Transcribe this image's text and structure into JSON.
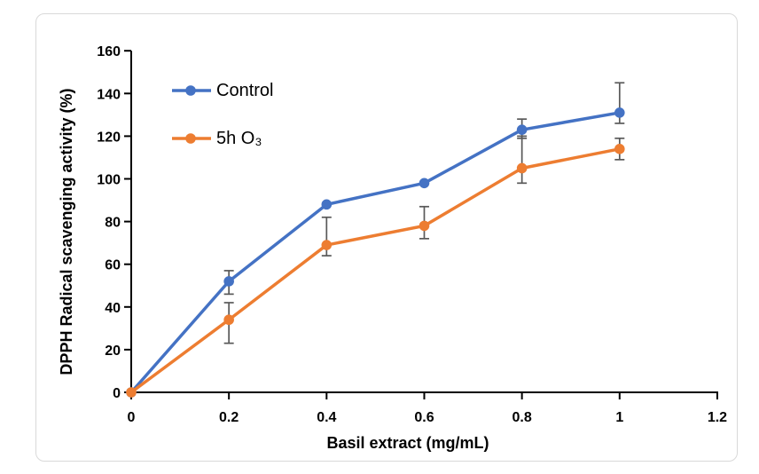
{
  "figure": {
    "background_color": "#ffffff",
    "frame_border_color": "#d9d9d9"
  },
  "chart_data": {
    "type": "line",
    "title": "",
    "xlabel": "Basil extract (mg/mL)",
    "ylabel": "DPPH Radical scavenging activity (%)",
    "x": [
      0,
      0.2,
      0.4,
      0.6,
      0.8,
      1
    ],
    "xlim": [
      0,
      1.2
    ],
    "ylim": [
      0,
      160
    ],
    "x_ticks": [
      "0",
      "0.2",
      "0.4",
      "0.6",
      "0.8",
      "1",
      "1.2"
    ],
    "x_tick_values": [
      0,
      0.2,
      0.4,
      0.6,
      0.8,
      1,
      1.2
    ],
    "y_ticks": [
      "0",
      "20",
      "40",
      "60",
      "80",
      "100",
      "120",
      "140",
      "160"
    ],
    "y_tick_values": [
      0,
      20,
      40,
      60,
      80,
      100,
      120,
      140,
      160
    ],
    "grid": false,
    "legend_position": "inside-top-left",
    "axis_color": "#000000",
    "error_bar_color": "#595959",
    "series": [
      {
        "name": "Control",
        "color": "#4472C4",
        "values": [
          0,
          52,
          88,
          98,
          123,
          131
        ],
        "err_up": [
          0,
          5,
          0,
          0,
          5,
          14
        ],
        "err_down": [
          0,
          6,
          0,
          0,
          4,
          5
        ]
      },
      {
        "name": "5h O₃",
        "color": "#ED7D31",
        "values": [
          0,
          34,
          69,
          78,
          105,
          114
        ],
        "err_up": [
          0,
          8,
          13,
          9,
          15,
          5
        ],
        "err_down": [
          0,
          11,
          5,
          6,
          7,
          5
        ]
      }
    ]
  }
}
